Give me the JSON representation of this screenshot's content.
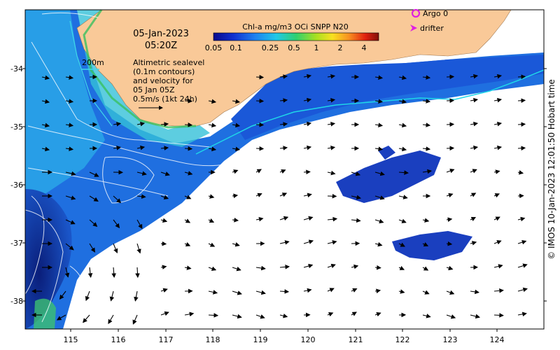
{
  "map": {
    "date": "05-Jan-2023",
    "time": "05:20Z",
    "depth_label": "200m",
    "annotation_lines": [
      "Altimetric sealevel",
      "(0.1m contours)",
      "and velocity for",
      "05 Jan 05Z",
      "0.5m/s (1kt 24h)"
    ],
    "colorbar": {
      "title": "Chl-a mg/m3 OCi SNPP N20",
      "ticks": [
        "0.05",
        "0.1",
        "0.25",
        "0.5",
        "1",
        "2",
        "4"
      ]
    },
    "legend": {
      "argo": "Argo 0",
      "drifter": "drifter"
    },
    "x_ticks": [
      "115",
      "116",
      "117",
      "118",
      "119",
      "120",
      "121",
      "122",
      "123",
      "124"
    ],
    "y_ticks": [
      "-34",
      "-35",
      "-36",
      "-37",
      "-38"
    ],
    "credit": "© IMOS 10-Jan-2023 12:01:50 Hobart time",
    "colors": {
      "land": "#f9c998",
      "ocean_blue": "#1f6fe0",
      "ocean_cyan": "#2aa7e8",
      "deep_blue": "#0a2a9a",
      "track": "#1fd6e8",
      "argo_marker": "#e020e0"
    }
  }
}
